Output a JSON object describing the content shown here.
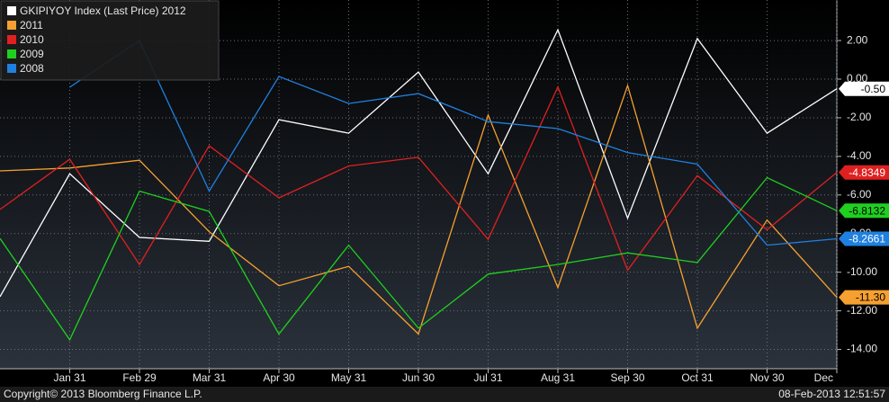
{
  "chart_data": {
    "type": "line",
    "categories": [
      null,
      "Jan 31",
      "Feb 29",
      "Mar 31",
      "Apr 30",
      "May 31",
      "Jun 30",
      "Jul 31",
      "Aug 31",
      "Sep 30",
      "Oct 31",
      "Nov 30",
      "Dec"
    ],
    "series": [
      {
        "name": "GKIPIYOY Index (Last Price) 2012",
        "color": "#ffffff",
        "values": [
          -11.27,
          -4.9,
          -8.2,
          -8.4,
          -2.1,
          -2.8,
          0.37,
          -4.9,
          2.56,
          -7.2,
          2.1,
          -2.8,
          -0.5
        ],
        "value_labels": [
          null,
          null,
          null,
          null,
          null,
          null,
          null,
          null,
          null,
          null,
          null,
          null,
          "-0.50"
        ]
      },
      {
        "name": "2011",
        "color": "#f5a030",
        "values": [
          -4.75,
          -4.6,
          -4.2,
          -7.9,
          -10.7,
          -9.7,
          -13.2,
          -1.86,
          -10.8,
          -0.33,
          -12.9,
          -7.3,
          -11.3
        ],
        "value_labels": [
          null,
          null,
          null,
          null,
          null,
          null,
          null,
          null,
          null,
          null,
          null,
          null,
          "-11.30"
        ]
      },
      {
        "name": "2010",
        "color": "#e02020",
        "values": [
          -6.75,
          -4.15,
          -9.6,
          -3.45,
          -6.15,
          -4.5,
          -4.05,
          -8.3,
          -0.4,
          -9.9,
          -5.0,
          -7.8,
          -4.8349
        ],
        "value_labels": [
          null,
          null,
          null,
          null,
          null,
          null,
          null,
          null,
          null,
          null,
          null,
          null,
          "-4.8349"
        ]
      },
      {
        "name": "2009",
        "color": "#1fd01f",
        "values": [
          -8.25,
          -13.5,
          -5.8,
          -6.85,
          -13.2,
          -8.6,
          -12.9,
          -10.1,
          -9.6,
          -9.0,
          -9.5,
          -5.1,
          -6.8132
        ],
        "value_labels": [
          null,
          null,
          null,
          null,
          null,
          null,
          null,
          null,
          null,
          null,
          null,
          null,
          "-6.8132"
        ]
      },
      {
        "name": "2008",
        "color": "#2080e0",
        "values": [
          null,
          -0.42,
          2.0,
          -5.8,
          0.14,
          -1.26,
          -0.75,
          -2.2,
          -2.56,
          -3.8,
          -4.4,
          -8.6,
          -8.2661
        ],
        "value_labels": [
          null,
          null,
          null,
          null,
          null,
          null,
          null,
          null,
          null,
          null,
          null,
          null,
          "-8.2661"
        ]
      }
    ],
    "ylim": [
      -15,
      4.1
    ],
    "yticks": [
      {
        "value": 2,
        "label": "2.00"
      },
      {
        "value": 0,
        "label": "0.00"
      },
      {
        "value": -2,
        "label": "-2.00"
      },
      {
        "value": -4,
        "label": "-4.00"
      },
      {
        "value": -6,
        "label": "-6.00"
      },
      {
        "value": -8,
        "label": "-8.00"
      },
      {
        "value": -10,
        "label": "-10.00"
      },
      {
        "value": -12,
        "label": "-12.00"
      },
      {
        "value": -14,
        "label": "-14.00"
      }
    ],
    "grid": true,
    "legend": "top-left",
    "footer_left": "Copyright© 2013 Bloomberg Finance L.P.",
    "footer_right": "08-Feb-2013 12:51:57"
  }
}
